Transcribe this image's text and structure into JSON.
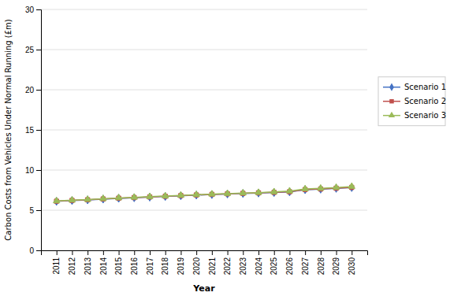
{
  "chart_data": {
    "type": "line",
    "x_label": "Year",
    "y_label": "Carbon Costs from Vehicles Under Normal Running (£m)",
    "x": [
      2011,
      2012,
      2013,
      2014,
      2015,
      2016,
      2017,
      2018,
      2019,
      2020,
      2021,
      2022,
      2023,
      2024,
      2025,
      2026,
      2027,
      2028,
      2029,
      2030
    ],
    "series": [
      {
        "name": "Scenario 1",
        "color": "#4472C4",
        "marker": "diamond",
        "values": [
          6.1,
          6.2,
          6.28,
          6.38,
          6.48,
          6.55,
          6.63,
          6.71,
          6.8,
          6.88,
          6.95,
          7.02,
          7.08,
          7.14,
          7.2,
          7.28,
          7.55,
          7.62,
          7.72,
          7.82
        ]
      },
      {
        "name": "Scenario 2",
        "color": "#C0504D",
        "marker": "square",
        "values": [
          6.12,
          6.22,
          6.3,
          6.4,
          6.5,
          6.57,
          6.65,
          6.73,
          6.82,
          6.9,
          6.97,
          7.04,
          7.1,
          7.16,
          7.22,
          7.3,
          7.57,
          7.64,
          7.74,
          7.84
        ]
      },
      {
        "name": "Scenario 3",
        "color": "#9BBB59",
        "marker": "triangle",
        "values": [
          6.15,
          6.25,
          6.33,
          6.43,
          6.53,
          6.6,
          6.68,
          6.76,
          6.85,
          6.93,
          7.0,
          7.07,
          7.13,
          7.19,
          7.28,
          7.38,
          7.65,
          7.72,
          7.82,
          7.95
        ]
      }
    ],
    "xlim": [
      2010,
      2031
    ],
    "xticks": [
      2011,
      2012,
      2013,
      2014,
      2015,
      2016,
      2017,
      2018,
      2019,
      2020,
      2021,
      2022,
      2023,
      2024,
      2025,
      2026,
      2027,
      2028,
      2029,
      2030
    ],
    "ylim": [
      0,
      30
    ],
    "yticks": [
      0,
      5,
      10,
      15,
      20,
      25,
      30
    ],
    "grid": true,
    "legend": "right"
  }
}
